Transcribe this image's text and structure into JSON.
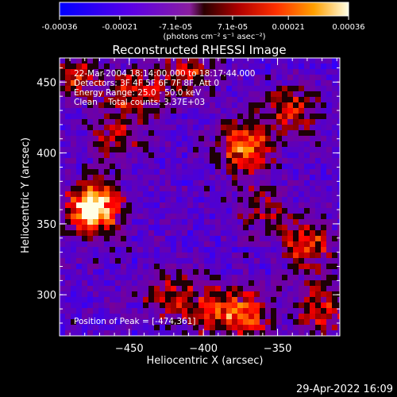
{
  "colorbar": {
    "ticks": [
      "-0.00036",
      "-0.00021",
      "-7.1e-05",
      "7.1e-05",
      "0.00021",
      "0.00036"
    ],
    "tick_values": [
      -0.00036,
      -0.00021,
      -7.1e-05,
      7.1e-05,
      0.00021,
      0.00036
    ],
    "range": [
      -0.00036,
      0.00036
    ],
    "units_label": "(photons cm⁻² s⁻¹ asec⁻²)"
  },
  "chart_data": {
    "type": "heatmap",
    "title": "Reconstructed RHESSI Image",
    "xlabel": "Heliocentric X (arcsec)",
    "ylabel": "Heliocentric Y (arcsec)",
    "xlim": [
      -497,
      -308
    ],
    "ylim": [
      271,
      467
    ],
    "xticks": [
      -450,
      -400,
      -350
    ],
    "yticks": [
      300,
      350,
      400,
      450
    ],
    "annotations": {
      "lines": [
        "22-Mar-2004 18:14:00.000 to 18:17:44.000",
        "Detectors: 3F 4F 5F 6F 7F 8F, Att 0",
        "Energy Range: 25.0 - 50.0 keV",
        "Clean    Total counts: 3.37E+03"
      ],
      "peak_label": "Position of Peak = [-474,361]"
    },
    "peak": [
      -474,
      361
    ],
    "sources": [
      {
        "x": -474,
        "y": 361,
        "amp": 1.0
      },
      {
        "x": -372,
        "y": 405,
        "amp": 0.7
      },
      {
        "x": -330,
        "y": 335,
        "amp": 0.55
      },
      {
        "x": -445,
        "y": 440,
        "amp": 0.5
      },
      {
        "x": -410,
        "y": 455,
        "amp": 0.45
      },
      {
        "x": -340,
        "y": 430,
        "amp": 0.45
      },
      {
        "x": -425,
        "y": 300,
        "amp": 0.4
      },
      {
        "x": -395,
        "y": 290,
        "amp": 0.45
      },
      {
        "x": -370,
        "y": 285,
        "amp": 0.55
      },
      {
        "x": -320,
        "y": 290,
        "amp": 0.5
      },
      {
        "x": -460,
        "y": 410,
        "amp": 0.35
      },
      {
        "x": -485,
        "y": 455,
        "amp": 0.45
      },
      {
        "x": -360,
        "y": 360,
        "amp": 0.35
      }
    ]
  },
  "footer": {
    "timestamp": "29-Apr-2022 16:09"
  }
}
